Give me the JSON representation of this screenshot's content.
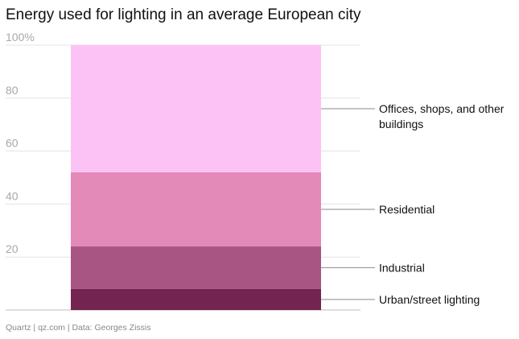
{
  "chart_data": {
    "type": "bar",
    "stacked": true,
    "title": "Energy used for lighting in an average European city",
    "unit": "%",
    "ylim": [
      0,
      100
    ],
    "yticks": [
      100,
      80,
      60,
      40,
      20
    ],
    "ytick_labels": [
      "100%",
      "80",
      "60",
      "40",
      "20"
    ],
    "grid": true,
    "series": [
      {
        "name": "Urban/street lighting",
        "value": 8,
        "color": "#732451"
      },
      {
        "name": "Industrial",
        "value": 16,
        "color": "#a95583"
      },
      {
        "name": "Residential",
        "value": 28,
        "color": "#e48ab9"
      },
      {
        "name": "Offices, shops, and other buildings",
        "value": 48,
        "color": "#fcc2f5"
      }
    ],
    "source": "Quartz | qz.com | Data: Georges Zissis"
  }
}
